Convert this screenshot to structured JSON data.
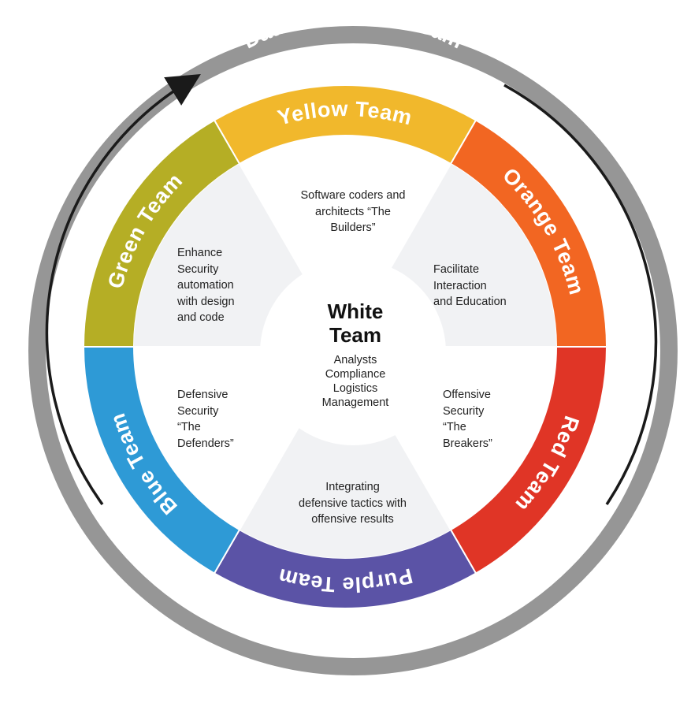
{
  "outer_ring": {
    "label": "Data Protection Team",
    "ring_color": "#969696",
    "arrow_color": "#1a1a1a"
  },
  "teams": [
    {
      "key": "yellow",
      "name": "Yellow Team",
      "color": "#f1b82c",
      "description": [
        "Software coders and",
        "architects “The",
        "Builders”"
      ]
    },
    {
      "key": "orange",
      "name": "Orange Team",
      "color": "#f26622",
      "description": [
        "Facilitate",
        "Interaction",
        "and Education"
      ]
    },
    {
      "key": "red",
      "name": "Red Team",
      "color": "#e03526",
      "description": [
        "Offensive",
        "Security",
        "“The",
        "Breakers”"
      ]
    },
    {
      "key": "purple",
      "name": "Purple Team",
      "color": "#5b53a6",
      "description": [
        "Integrating",
        "defensive tactics with",
        "offensive results"
      ]
    },
    {
      "key": "blue",
      "name": "Blue Team",
      "color": "#2e9ad6",
      "description": [
        "Defensive",
        "Security",
        "“The",
        "Defenders”"
      ]
    },
    {
      "key": "green",
      "name": "Green Team",
      "color": "#b5ae25",
      "description": [
        "Enhance",
        "Security",
        "automation",
        "with design",
        "and code"
      ]
    }
  ],
  "center": {
    "title": [
      "White",
      "Team"
    ],
    "roles": [
      "Analysts",
      "Compliance",
      "Logistics",
      "Management"
    ],
    "color": "#ffffff"
  },
  "inner_panel_color": "#f1f2f4",
  "alt_panel_color": "#ffffff"
}
